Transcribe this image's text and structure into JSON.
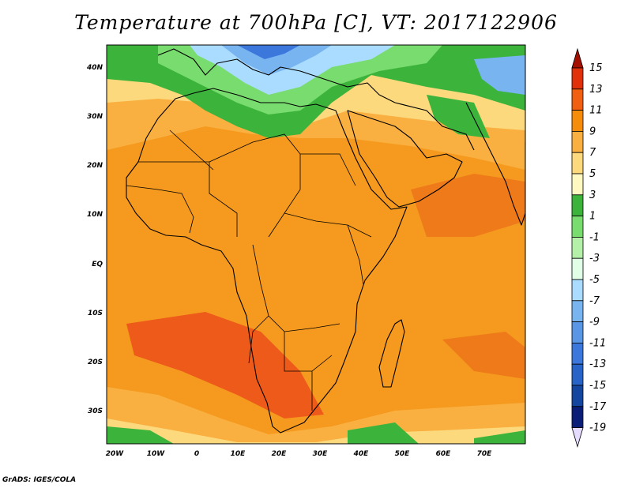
{
  "title": "Temperature at 700hPa [C], VT: 2017122906",
  "credit": "GrADS: IGES/COLA",
  "map": {
    "lon_ticks": [
      "20W",
      "10W",
      "0",
      "10E",
      "20E",
      "30E",
      "40E",
      "50E",
      "60E",
      "70E"
    ],
    "lat_ticks": [
      "40N",
      "30N",
      "20N",
      "10N",
      "EQ",
      "10S",
      "20S",
      "30S"
    ]
  },
  "colorbar": {
    "labels": [
      "15",
      "13",
      "11",
      "9",
      "7",
      "5",
      "3",
      "1",
      "-1",
      "-3",
      "-5",
      "-7",
      "-9",
      "-11",
      "-13",
      "-15",
      "-17",
      "-19"
    ],
    "colors": [
      "#a50f00",
      "#e0310a",
      "#f06010",
      "#f58c0a",
      "#f9b040",
      "#fdd97d",
      "#fff8c0",
      "#3cb43c",
      "#78dc6e",
      "#b4f0a8",
      "#e1ffe6",
      "#aadcff",
      "#78b4f0",
      "#5a96e6",
      "#3c78dc",
      "#2864c8",
      "#1446a0",
      "#0a1e78",
      "#e6dcff"
    ]
  },
  "colors": {
    "warm_core": "#ee5a1a",
    "warm": "#f59a1e",
    "mild": "#f9b040",
    "cool_yellow": "#fdd97d",
    "green": "#3cb43c",
    "light_green": "#78dc6e",
    "blue": "#78b4f0",
    "dark_blue": "#3c78dc"
  }
}
